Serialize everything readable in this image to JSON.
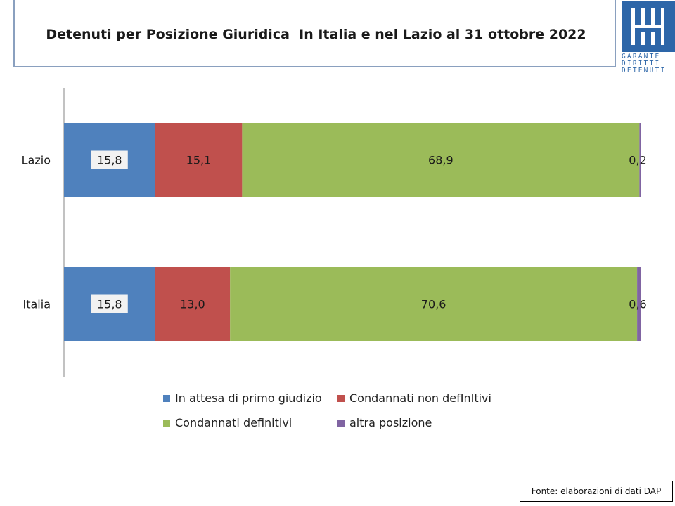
{
  "header": {
    "title": "Detenuti per Posizione Giuridica  In Italia e nel Lazio al 31 ottobre 2022",
    "logo_lines": [
      "GARANTE",
      "DIRITTI",
      "DETENUTI"
    ]
  },
  "chart_data": {
    "type": "bar",
    "orientation": "horizontal",
    "stacked": true,
    "categories": [
      "Lazio",
      "Italia"
    ],
    "series": [
      {
        "name": "In attesa di primo giudizio",
        "values": [
          15.8,
          15.8
        ],
        "labels": [
          "15,8",
          "15,8"
        ],
        "color": "#4f81bd"
      },
      {
        "name": "Condannati non defInItivi",
        "values": [
          15.1,
          13.0
        ],
        "labels": [
          "15,1",
          "13,0"
        ],
        "color": "#c0504d"
      },
      {
        "name": "Condannati definitivi",
        "values": [
          68.9,
          70.6
        ],
        "labels": [
          "68,9",
          "70,6"
        ],
        "color": "#9bbb59"
      },
      {
        "name": "altra posizione",
        "values": [
          0.2,
          0.6
        ],
        "labels": [
          "0,2",
          "0,6"
        ],
        "color": "#8064a2"
      }
    ],
    "xlim": [
      0,
      100
    ],
    "legend_position": "bottom",
    "grid": false
  },
  "footer": {
    "source": "Fonte: elaborazioni di dati DAP"
  }
}
